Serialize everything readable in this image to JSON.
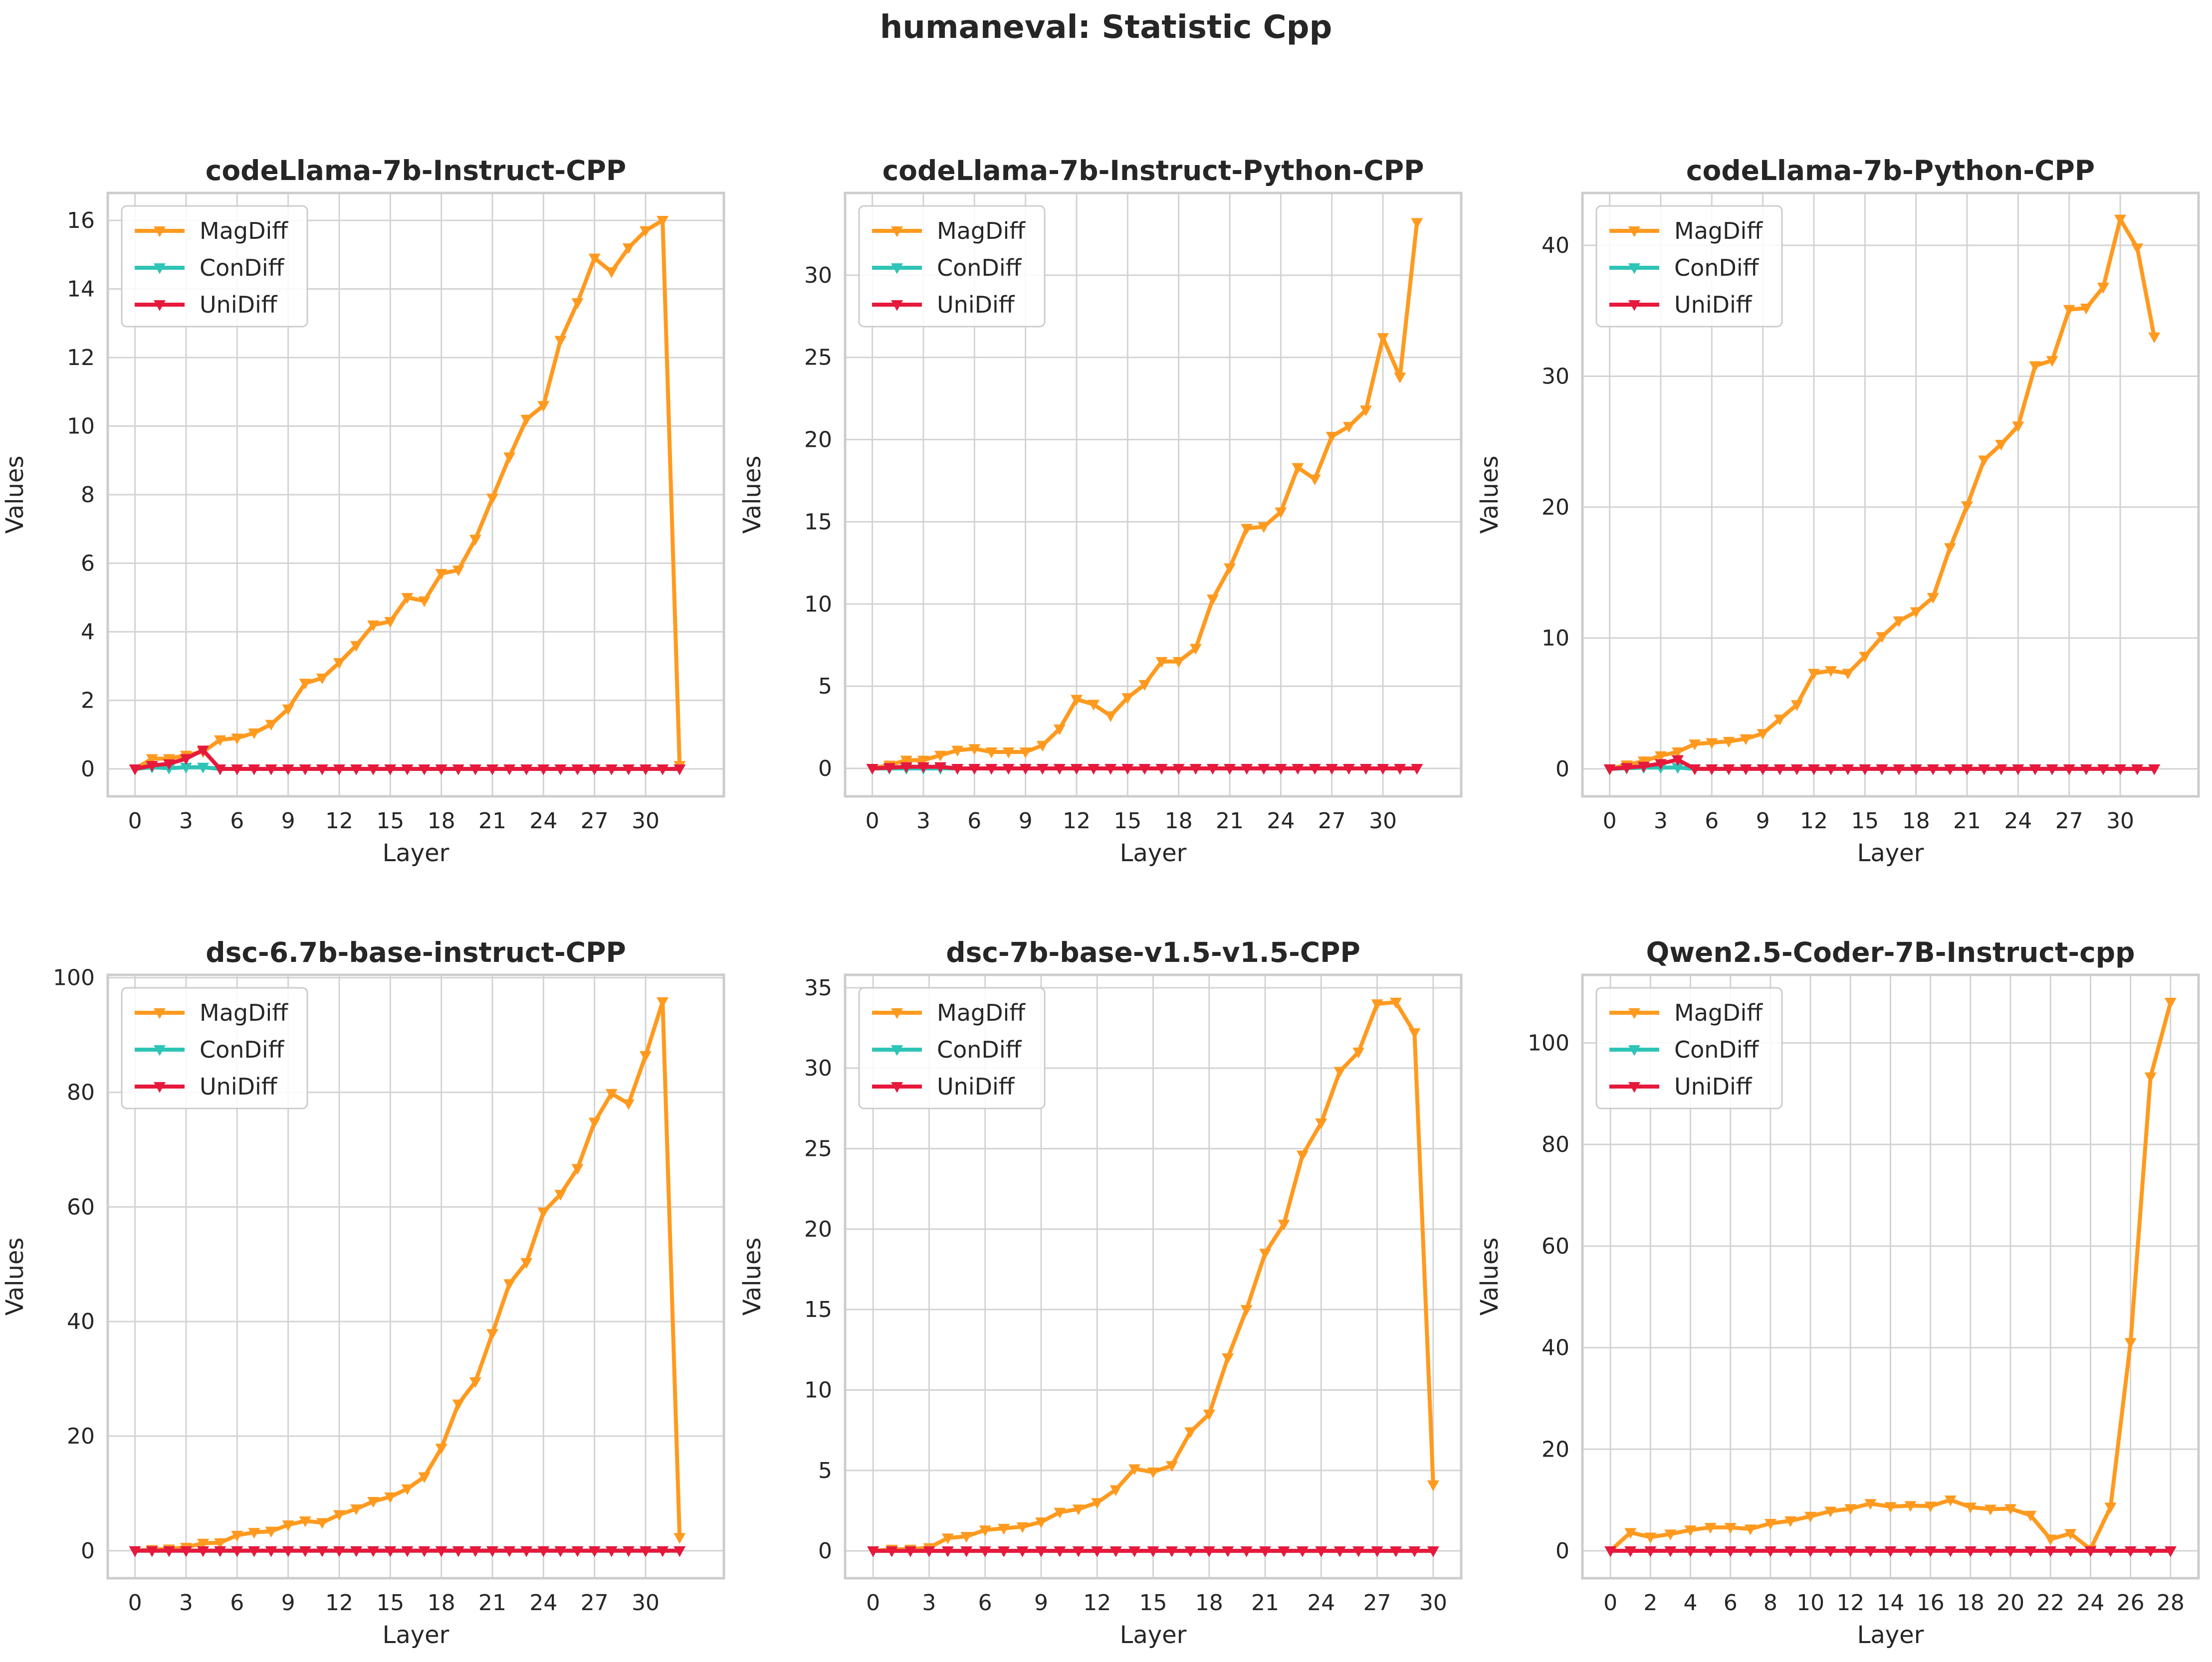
{
  "figure": {
    "title": "humaneval: Statistic Cpp",
    "colors": {
      "MagDiff": "#ff9a1f",
      "ConDiff": "#2ec4b6",
      "UniDiff": "#e6193c"
    },
    "marker": "triangle-down"
  },
  "chart_data": [
    {
      "type": "line",
      "title": "codeLlama-7b-Instruct-CPP",
      "xlabel": "Layer",
      "ylabel": "Values",
      "xlim": [
        -1.6,
        34.6
      ],
      "ylim": [
        -0.8,
        16.8
      ],
      "xticks": [
        0,
        3,
        6,
        9,
        12,
        15,
        18,
        21,
        24,
        27,
        30
      ],
      "yticks": [
        0,
        2,
        4,
        6,
        8,
        10,
        12,
        14,
        16
      ],
      "grid": true,
      "legend_position": "upper left",
      "x": [
        0,
        1,
        2,
        3,
        4,
        5,
        6,
        7,
        8,
        9,
        10,
        11,
        12,
        13,
        14,
        15,
        16,
        17,
        18,
        19,
        20,
        21,
        22,
        23,
        24,
        25,
        26,
        27,
        28,
        29,
        30,
        31,
        32
      ],
      "series": [
        {
          "name": "MagDiff",
          "values": [
            0,
            0.3,
            0.3,
            0.4,
            0.5,
            0.85,
            0.9,
            1.05,
            1.3,
            1.75,
            2.5,
            2.65,
            3.1,
            3.6,
            4.2,
            4.3,
            5.0,
            4.9,
            5.7,
            5.8,
            6.7,
            7.9,
            9.1,
            10.2,
            10.6,
            12.5,
            13.6,
            14.9,
            14.5,
            15.2,
            15.7,
            16.0,
            0.1
          ]
        },
        {
          "name": "ConDiff",
          "values": [
            0,
            0.05,
            0.02,
            0.05,
            0.05,
            0,
            0,
            0,
            0,
            0,
            0,
            0,
            0,
            0,
            0,
            0,
            0,
            0,
            0,
            0,
            0,
            0,
            0,
            0,
            0,
            0,
            0,
            0,
            0,
            0,
            0,
            0,
            0
          ]
        },
        {
          "name": "UniDiff",
          "values": [
            0,
            0.1,
            0.15,
            0.3,
            0.55,
            0,
            0,
            0,
            0,
            0,
            0,
            0,
            0,
            0,
            0,
            0,
            0,
            0,
            0,
            0,
            0,
            0,
            0,
            0,
            0,
            0,
            0,
            0,
            0,
            0,
            0,
            0,
            0
          ]
        }
      ]
    },
    {
      "type": "line",
      "title": "codeLlama-7b-Instruct-Python-CPP",
      "xlabel": "Layer",
      "ylabel": "Values",
      "xlim": [
        -1.6,
        34.6
      ],
      "ylim": [
        -1.7,
        35
      ],
      "xticks": [
        0,
        3,
        6,
        9,
        12,
        15,
        18,
        21,
        24,
        27,
        30
      ],
      "yticks": [
        0,
        5,
        10,
        15,
        20,
        25,
        30
      ],
      "grid": true,
      "legend_position": "upper left",
      "x": [
        0,
        1,
        2,
        3,
        4,
        5,
        6,
        7,
        8,
        9,
        10,
        11,
        12,
        13,
        14,
        15,
        16,
        17,
        18,
        19,
        20,
        21,
        22,
        23,
        24,
        25,
        26,
        27,
        28,
        29,
        30,
        31,
        32
      ],
      "series": [
        {
          "name": "MagDiff",
          "values": [
            0,
            0.2,
            0.5,
            0.5,
            0.8,
            1.1,
            1.2,
            1.0,
            1.0,
            1.0,
            1.4,
            2.4,
            4.2,
            3.9,
            3.2,
            4.3,
            5.1,
            6.5,
            6.5,
            7.3,
            10.3,
            12.2,
            14.6,
            14.7,
            15.6,
            18.3,
            17.6,
            20.2,
            20.8,
            21.8,
            26.2,
            23.8,
            33.2
          ]
        },
        {
          "name": "ConDiff",
          "values": [
            0,
            0,
            0,
            0,
            0,
            0,
            0,
            0,
            0,
            0,
            0,
            0,
            0,
            0,
            0,
            0,
            0,
            0,
            0,
            0,
            0,
            0,
            0,
            0,
            0,
            0,
            0,
            0,
            0,
            0,
            0,
            0,
            0
          ]
        },
        {
          "name": "UniDiff",
          "values": [
            0,
            0.05,
            0.1,
            0.1,
            0.1,
            0,
            0,
            0,
            0,
            0,
            0,
            0,
            0,
            0,
            0,
            0,
            0,
            0,
            0,
            0,
            0,
            0,
            0,
            0,
            0,
            0,
            0,
            0,
            0,
            0,
            0,
            0,
            0
          ]
        }
      ]
    },
    {
      "type": "line",
      "title": "codeLlama-7b-Python-CPP",
      "xlabel": "Layer",
      "ylabel": "Values",
      "xlim": [
        -1.6,
        34.6
      ],
      "ylim": [
        -2.1,
        44
      ],
      "xticks": [
        0,
        3,
        6,
        9,
        12,
        15,
        18,
        21,
        24,
        27,
        30
      ],
      "yticks": [
        0,
        10,
        20,
        30,
        40
      ],
      "grid": true,
      "legend_position": "upper left",
      "x": [
        0,
        1,
        2,
        3,
        4,
        5,
        6,
        7,
        8,
        9,
        10,
        11,
        12,
        13,
        14,
        15,
        16,
        17,
        18,
        19,
        20,
        21,
        22,
        23,
        24,
        25,
        26,
        27,
        28,
        29,
        30,
        31,
        32
      ],
      "series": [
        {
          "name": "MagDiff",
          "values": [
            0,
            0.3,
            0.6,
            1.0,
            1.3,
            1.9,
            2.0,
            2.1,
            2.3,
            2.7,
            3.8,
            4.9,
            7.3,
            7.5,
            7.3,
            8.6,
            10.1,
            11.3,
            12.0,
            13.1,
            16.9,
            20.1,
            23.6,
            24.8,
            26.2,
            30.8,
            31.2,
            35.1,
            35.2,
            36.8,
            42.0,
            39.8,
            33.0
          ]
        },
        {
          "name": "ConDiff",
          "values": [
            0,
            0.05,
            0.1,
            0.1,
            0.1,
            0,
            0,
            0,
            0,
            0,
            0,
            0,
            0,
            0,
            0,
            0,
            0,
            0,
            0,
            0,
            0,
            0,
            0,
            0,
            0,
            0,
            0,
            0,
            0,
            0,
            0,
            0,
            0
          ]
        },
        {
          "name": "UniDiff",
          "values": [
            0,
            0.1,
            0.2,
            0.4,
            0.7,
            0,
            0,
            0,
            0,
            0,
            0,
            0,
            0,
            0,
            0,
            0,
            0,
            0,
            0,
            0,
            0,
            0,
            0,
            0,
            0,
            0,
            0,
            0,
            0,
            0,
            0,
            0,
            0
          ]
        }
      ]
    },
    {
      "type": "line",
      "title": "dsc-6.7b-base-instruct-CPP",
      "xlabel": "Layer",
      "ylabel": "Values",
      "xlim": [
        -1.6,
        34.6
      ],
      "ylim": [
        -4.8,
        100.5
      ],
      "xticks": [
        0,
        3,
        6,
        9,
        12,
        15,
        18,
        21,
        24,
        27,
        30
      ],
      "yticks": [
        0,
        20,
        40,
        60,
        80,
        100
      ],
      "grid": true,
      "legend_position": "upper left",
      "x": [
        0,
        1,
        2,
        3,
        4,
        5,
        6,
        7,
        8,
        9,
        10,
        11,
        12,
        13,
        14,
        15,
        16,
        17,
        18,
        19,
        20,
        21,
        22,
        23,
        24,
        25,
        26,
        27,
        28,
        29,
        30,
        31,
        32
      ],
      "series": [
        {
          "name": "MagDiff",
          "values": [
            0,
            0.2,
            0.3,
            0.6,
            1.3,
            1.4,
            2.7,
            3.2,
            3.4,
            4.5,
            5.2,
            4.9,
            6.3,
            7.3,
            8.6,
            9.4,
            10.8,
            12.9,
            17.9,
            25.6,
            29.5,
            37.9,
            46.6,
            50.3,
            59.1,
            62.2,
            66.7,
            74.8,
            79.8,
            78.0,
            86.4,
            95.8,
            2.3
          ]
        },
        {
          "name": "ConDiff",
          "values": [
            0,
            0,
            0,
            0,
            0,
            0,
            0,
            0,
            0,
            0,
            0,
            0,
            0,
            0,
            0,
            0,
            0,
            0,
            0,
            0,
            0,
            0,
            0,
            0,
            0,
            0,
            0,
            0,
            0,
            0,
            0,
            0,
            0
          ]
        },
        {
          "name": "UniDiff",
          "values": [
            0,
            0,
            0,
            0,
            0,
            0,
            0,
            0,
            0,
            0,
            0,
            0,
            0,
            0,
            0,
            0,
            0,
            0,
            0,
            0,
            0,
            0,
            0,
            0,
            0,
            0,
            0,
            0,
            0,
            0,
            0,
            0,
            0
          ]
        }
      ]
    },
    {
      "type": "line",
      "title": "dsc-7b-base-v1.5-v1.5-CPP",
      "xlabel": "Layer",
      "ylabel": "Values",
      "xlim": [
        -1.5,
        31.5
      ],
      "ylim": [
        -1.7,
        35.8
      ],
      "xticks": [
        0,
        3,
        6,
        9,
        12,
        15,
        18,
        21,
        24,
        27,
        30
      ],
      "yticks": [
        0,
        5,
        10,
        15,
        20,
        25,
        30,
        35
      ],
      "grid": true,
      "legend_position": "upper left",
      "x": [
        0,
        1,
        2,
        3,
        4,
        5,
        6,
        7,
        8,
        9,
        10,
        11,
        12,
        13,
        14,
        15,
        16,
        17,
        18,
        19,
        20,
        21,
        22,
        23,
        24,
        25,
        26,
        27,
        28,
        29,
        30
      ],
      "series": [
        {
          "name": "MagDiff",
          "values": [
            0,
            0.1,
            0.1,
            0.2,
            0.8,
            0.9,
            1.3,
            1.4,
            1.5,
            1.8,
            2.4,
            2.6,
            3.0,
            3.8,
            5.1,
            4.9,
            5.3,
            7.4,
            8.5,
            12.0,
            15.0,
            18.5,
            20.3,
            24.6,
            26.6,
            29.8,
            31.0,
            34.0,
            34.1,
            32.2,
            4.1
          ]
        },
        {
          "name": "ConDiff",
          "values": [
            0,
            0,
            0,
            0,
            0,
            0,
            0,
            0,
            0,
            0,
            0,
            0,
            0,
            0,
            0,
            0,
            0,
            0,
            0,
            0,
            0,
            0,
            0,
            0,
            0,
            0,
            0,
            0,
            0,
            0,
            0
          ]
        },
        {
          "name": "UniDiff",
          "values": [
            0,
            0,
            0,
            0,
            0,
            0,
            0,
            0,
            0,
            0,
            0,
            0,
            0,
            0,
            0,
            0,
            0,
            0,
            0,
            0,
            0,
            0,
            0,
            0,
            0,
            0,
            0,
            0,
            0,
            0,
            0
          ]
        }
      ]
    },
    {
      "type": "line",
      "title": "Qwen2.5-Coder-7B-Instruct-cpp",
      "xlabel": "Layer",
      "ylabel": "Values",
      "xlim": [
        -1.4,
        29.4
      ],
      "ylim": [
        -5.4,
        113.4
      ],
      "xticks": [
        0,
        2,
        4,
        6,
        8,
        10,
        12,
        14,
        16,
        18,
        20,
        22,
        24,
        26,
        28
      ],
      "yticks": [
        0,
        20,
        40,
        60,
        80,
        100
      ],
      "grid": true,
      "legend_position": "upper left",
      "x": [
        0,
        1,
        2,
        3,
        4,
        5,
        6,
        7,
        8,
        9,
        10,
        11,
        12,
        13,
        14,
        15,
        16,
        17,
        18,
        19,
        20,
        21,
        22,
        23,
        24,
        25,
        26,
        27,
        28
      ],
      "series": [
        {
          "name": "MagDiff",
          "values": [
            0,
            3.6,
            2.7,
            3.3,
            4.1,
            4.6,
            4.6,
            4.3,
            5.4,
            5.9,
            6.8,
            7.8,
            8.3,
            9.3,
            8.7,
            8.9,
            8.8,
            10.0,
            8.6,
            8.2,
            8.3,
            7.0,
            2.3,
            3.4,
            0.3,
            8.6,
            41.0,
            93.3,
            108.0
          ]
        },
        {
          "name": "ConDiff",
          "values": [
            0,
            0,
            0,
            0,
            0,
            0,
            0,
            0,
            0,
            0,
            0,
            0,
            0,
            0,
            0,
            0,
            0,
            0,
            0,
            0,
            0,
            0,
            0,
            0,
            0,
            0,
            0,
            0,
            0
          ]
        },
        {
          "name": "UniDiff",
          "values": [
            0,
            0,
            0,
            0,
            0,
            0,
            0,
            0,
            0,
            0,
            0,
            0,
            0,
            0,
            0,
            0,
            0,
            0,
            0,
            0,
            0,
            0,
            0,
            0,
            0,
            0,
            0,
            0,
            0
          ]
        }
      ]
    }
  ]
}
